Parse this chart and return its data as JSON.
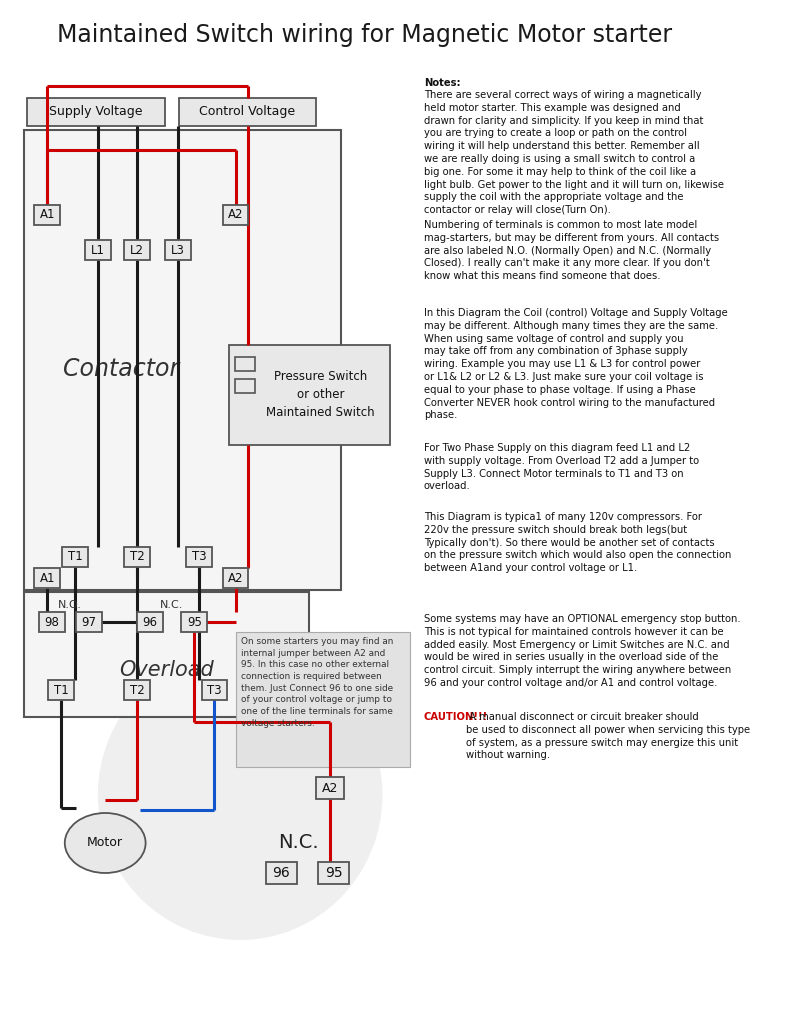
{
  "title": "Maintained Switch wiring for Magnetic Motor starter",
  "title_fontsize": 17,
  "bg_color": "#ffffff",
  "notes_title": "Notes:",
  "notes_para1": "There are several correct ways of wiring a magnetically\nheld motor starter. This example was designed and\ndrawn for clarity and simplicity. If you keep in mind that\nyou are trying to create a loop or path on the control\nwiring it will help understand this better. Remember all\nwe are really doing is using a small switch to control a\nbig one. For some it may help to think of the coil like a\nlight bulb. Get power to the light and it will turn on, likewise\nsupply the coil with the appropriate voltage and the\ncontactor or relay will close(Turn On).",
  "notes_para2": "Numbering of terminals is common to most late model\nmag-starters, but may be different from yours. All contacts\nare also labeled N.O. (Normally Open) and N.C. (Normally\nClosed). I really can't make it any more clear. If you don't\nknow what this means find someone that does.",
  "notes_para3": "In this Diagram the Coil (control) Voltage and Supply Voltage\nmay be different. Although many times they are the same.\nWhen using same voltage of control and supply you\nmay take off from any combination of 3phase supply\nwiring. Example you may use L1 & L3 for control power\nor L1& L2 or L2 & L3. Just make sure your coil voltage is\nequal to your phase to phase voltage. If using a Phase\nConverter NEVER hook control wiring to the manufactured\nphase.",
  "notes_para4": "For Two Phase Supply on this diagram feed L1 and L2\nwith supply voltage. From Overload T2 add a Jumper to\nSupply L3. Connect Motor terminals to T1 and T3 on\noverload.",
  "notes_para5": "This Diagram is typica1 of many 120v compressors. For\n220v the pressure switch should break both legs(but\nTypically don't). So there would be another set of contacts\non the pressure switch which would also open the connection\nbetween A1and your control voltage or L1.",
  "notes_para6": "Some systems may have an OPTIONAL emergency stop button.\nThis is not typical for maintained controls however it can be\nadded easily. Most Emergency or Limit Switches are N.C. and\nwould be wired in series usually in the overload side of the\ncontrol circuit. Simply interrupt the wiring anywhere between\n96 and your control voltage and/or A1 and control voltage.",
  "notes_para7_red": "CAUTION!!!",
  "notes_para7_rest": " A manual disconnect or circuit breaker should\nbe used to disconnect all power when servicing this type\nof system, as a pressure switch may energize this unit\nwithout warning.",
  "callout_text": "On some starters you may find an\ninternal jumper between A2 and\n95. In this case no other external\nconnection is required between\nthem. Just Connect 96 to one side\nof your control voltage or jump to\none of the line terminals for same\nvoltage starters.",
  "wire_red": "#cc0000",
  "wire_black": "#1a1a1a",
  "wire_blue": "#1155cc",
  "box_fill": "#e8e8e8",
  "box_edge": "#555555"
}
